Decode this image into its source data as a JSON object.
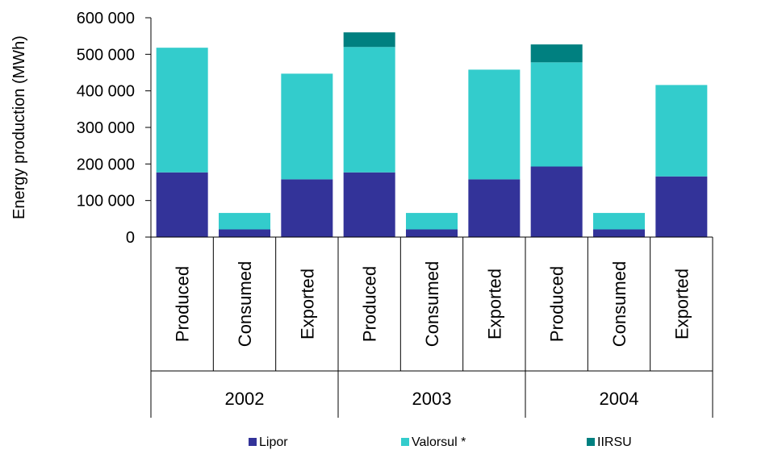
{
  "chart_data": {
    "type": "bar",
    "stacked": true,
    "ylabel": "Energy production (MWh)",
    "ylim": [
      0,
      600000
    ],
    "y_ticks": [
      0,
      100000,
      200000,
      300000,
      400000,
      500000,
      600000
    ],
    "y_tick_labels": [
      "0",
      "100 000",
      "200 000",
      "300 000",
      "400 000",
      "500 000",
      "600 000"
    ],
    "categories": [
      "Produced",
      "Consumed",
      "Exported",
      "Produced",
      "Consumed",
      "Exported",
      "Produced",
      "Consumed",
      "Exported"
    ],
    "groups": [
      {
        "label": "2002",
        "categories": [
          0,
          1,
          2
        ]
      },
      {
        "label": "2003",
        "categories": [
          3,
          4,
          5
        ]
      },
      {
        "label": "2004",
        "categories": [
          6,
          7,
          8
        ]
      }
    ],
    "series": [
      {
        "name": "Lipor",
        "color": "#333399",
        "values": [
          177000,
          21000,
          158000,
          177000,
          21000,
          158000,
          193000,
          21000,
          166000
        ]
      },
      {
        "name": "Valorsul *",
        "color": "#33CCCC",
        "values": [
          341000,
          45000,
          289000,
          343000,
          45000,
          300000,
          285000,
          45000,
          250000
        ]
      },
      {
        "name": "IIRSU",
        "color": "#008080",
        "values": [
          0,
          0,
          0,
          40000,
          0,
          0,
          49000,
          0,
          0
        ]
      }
    ],
    "grid": false,
    "legend_position": "bottom"
  }
}
